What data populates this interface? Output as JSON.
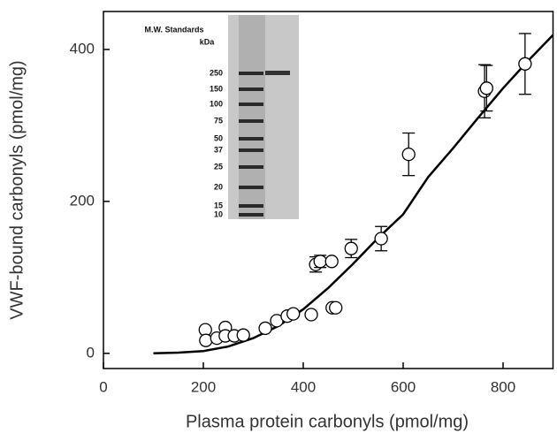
{
  "chart_data": {
    "type": "scatter",
    "x_label": "Plasma protein carbonyls (pmol/mg)",
    "y_label": "VWF-bound carbonyls (pmol/mg)",
    "xlim": [
      0,
      900
    ],
    "ylim": [
      -20,
      450
    ],
    "xticks": [
      0,
      200,
      400,
      600,
      800
    ],
    "yticks": [
      0,
      200,
      400
    ],
    "color": "#000000",
    "x": [
      204,
      205,
      227,
      244,
      244,
      262,
      280,
      324,
      347,
      368,
      380,
      416,
      458,
      465,
      425,
      434,
      457,
      496,
      556,
      611,
      763,
      767,
      844
    ],
    "values": [
      31,
      17,
      20,
      34,
      23,
      23,
      24,
      33,
      43,
      49,
      52,
      51,
      60,
      60,
      117,
      121,
      121,
      138,
      151,
      262,
      345,
      349,
      381
    ],
    "errors": [
      0,
      0,
      0,
      0,
      0,
      0,
      0,
      0,
      0,
      0,
      0,
      0,
      0,
      0,
      10,
      8,
      0,
      12,
      16,
      28,
      35,
      30,
      40
    ],
    "curve": {
      "x": [
        100,
        150,
        200,
        250,
        300,
        350,
        400,
        450,
        500,
        550,
        600,
        650,
        700,
        750,
        800,
        850,
        900
      ],
      "y": [
        0,
        1,
        3,
        9,
        20,
        36,
        58,
        86,
        118,
        152,
        183,
        232,
        270,
        310,
        349,
        385,
        419
      ]
    },
    "inset": {
      "title": "M.W. Standards",
      "unit": "kDa",
      "markers": [
        "250",
        "150",
        "100",
        "75",
        "50",
        "37",
        "25",
        "20",
        "15",
        "10"
      ]
    }
  }
}
